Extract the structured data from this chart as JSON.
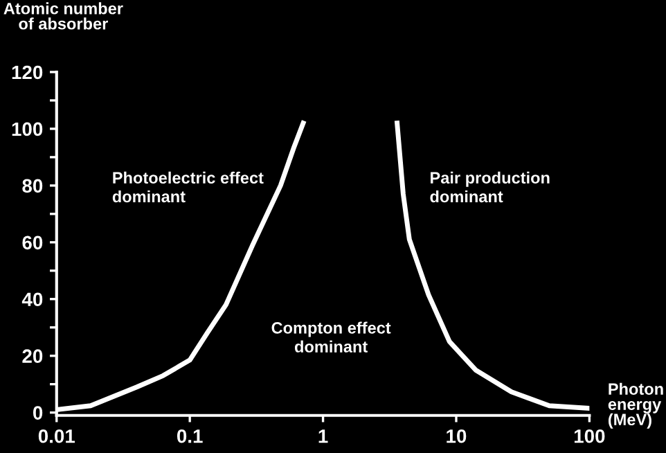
{
  "chart_data": {
    "type": "line",
    "ylabel": "Atomic number\nof absorber",
    "xlabel": "Photon\nenergy\n(MeV)",
    "log": "x",
    "xlim": [
      0.01,
      100
    ],
    "xticks": [
      0.01,
      0.1,
      1,
      10,
      100
    ],
    "ylim": [
      -1,
      120
    ],
    "yticks": [
      0,
      {
        "value": 10,
        "label": null
      },
      20,
      {
        "value": 30,
        "label": null
      },
      40,
      {
        "value": 50,
        "label": null
      },
      60,
      {
        "value": 70,
        "label": null
      },
      80,
      {
        "value": 90,
        "label": null
      },
      100,
      {
        "value": 110,
        "label": null
      },
      120
    ],
    "grid": false,
    "legend": false,
    "marker": "none",
    "line_style": "solid",
    "annotations": [
      "Photoelectric effect\ndominant",
      "Compton effect\ndominant",
      "Pair production\ndominant"
    ],
    "series": [
      {
        "color": "#ffffff",
        "x": [
          0.01,
          0.018,
          0.04,
          0.063,
          0.1,
          0.135,
          0.187,
          0.296,
          0.48,
          0.6,
          0.71
        ],
        "values": [
          1,
          2.4,
          9,
          13,
          18.5,
          28,
          38,
          59,
          80,
          93,
          102
        ]
      },
      {
        "color": "#ffffff",
        "x": [
          3.6,
          4.0,
          4.45,
          6.2,
          8.9,
          14,
          26,
          50,
          100
        ],
        "values": [
          102,
          77,
          61,
          41.5,
          25,
          15,
          7.3,
          2.4,
          1.5
        ]
      }
    ]
  }
}
